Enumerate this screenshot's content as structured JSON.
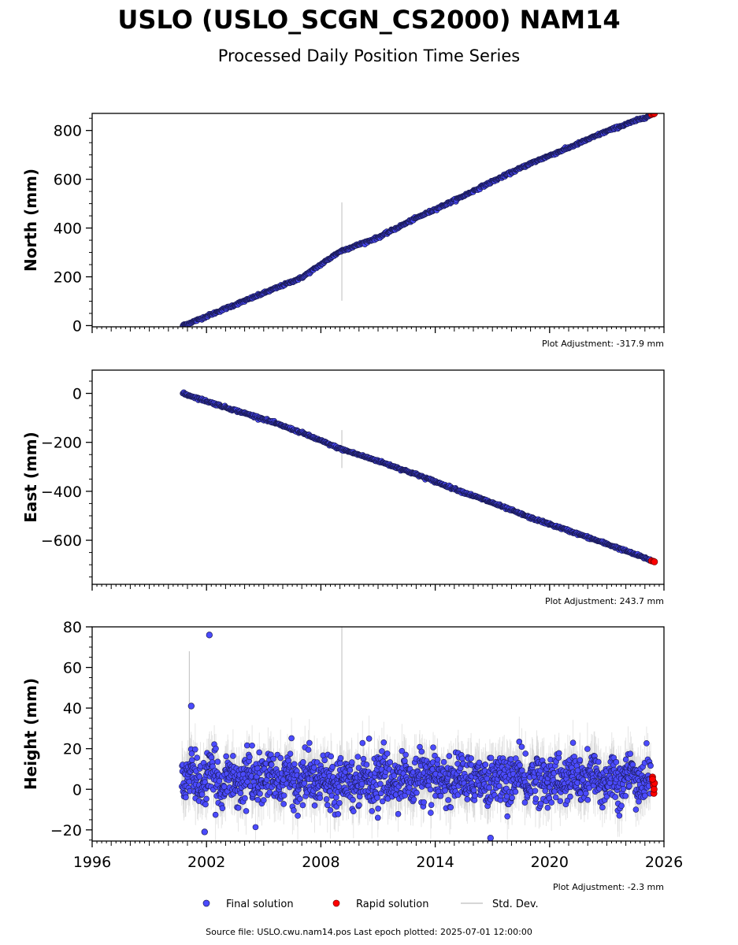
{
  "title": "USLO (USLO_SCGN_CS2000) NAM14",
  "subtitle": "Processed Daily Position Time Series",
  "footer": "Source file: USLO.cwu.nam14.pos  Last epoch plotted: 2025-07-01 12:00:00",
  "legend": {
    "final": "Final solution",
    "rapid": "Rapid solution",
    "std": "Std. Dev."
  },
  "colors": {
    "final_fill": "#4b4bff",
    "final_edge": "#1a1a55",
    "rapid_fill": "#ff0000",
    "rapid_edge": "#7a0000",
    "std_line": "#c8c8c8",
    "axis": "#000000"
  },
  "chart_data": [
    {
      "type": "scatter",
      "ylabel": "North (mm)",
      "adjustment_text": "Plot Adjustment: -317.9 mm",
      "xlim": [
        1996,
        2026
      ],
      "ylim": [
        -5,
        870
      ],
      "yticks": [
        0,
        200,
        400,
        600,
        800
      ],
      "ytick_labels": [
        "0",
        "200",
        "400",
        "600",
        "800"
      ],
      "series": [
        {
          "name": "Final solution",
          "x": [
            2000.75,
            2001.5,
            2003,
            2005,
            2007,
            2009,
            2011,
            2013,
            2015,
            2017,
            2019,
            2021,
            2023,
            2025.3
          ],
          "y": [
            0,
            22,
            70,
            133,
            197,
            304,
            361,
            441,
            513,
            591,
            665,
            729,
            797,
            862
          ]
        },
        {
          "name": "Rapid solution",
          "x": [
            2025.35,
            2025.45,
            2025.5
          ],
          "y": [
            866,
            868,
            870
          ]
        }
      ],
      "std_dev_outliers": [
        {
          "x": 2009.1,
          "y_low": 102,
          "y_high": 505
        }
      ]
    },
    {
      "type": "scatter",
      "ylabel": "East (mm)",
      "adjustment_text": "Plot Adjustment: 243.7 mm",
      "xlim": [
        1996,
        2026
      ],
      "ylim": [
        -780,
        95
      ],
      "yticks": [
        0,
        -200,
        -400,
        -600
      ],
      "ytick_labels": [
        "0",
        "−200",
        "−400",
        "−600"
      ],
      "series": [
        {
          "name": "Final solution",
          "x": [
            2000.75,
            2003,
            2005,
            2007,
            2009,
            2011,
            2013,
            2015,
            2017,
            2019,
            2021,
            2023,
            2025.3
          ],
          "y": [
            0,
            -57,
            -105,
            -161,
            -226,
            -276,
            -331,
            -390,
            -447,
            -508,
            -561,
            -615,
            -681
          ]
        },
        {
          "name": "Rapid solution",
          "x": [
            2025.35,
            2025.45,
            2025.5
          ],
          "y": [
            -684,
            -686,
            -688
          ]
        }
      ],
      "std_dev_outliers": [
        {
          "x": 2009.1,
          "y_low": -305,
          "y_high": -150
        }
      ]
    },
    {
      "type": "scatter",
      "ylabel": "Height (mm)",
      "adjustment_text": "Plot Adjustment: -2.3 mm",
      "xlim": [
        1996,
        2026
      ],
      "ylim": [
        -25.5,
        80
      ],
      "yticks": [
        -20,
        0,
        20,
        40,
        60,
        80
      ],
      "ytick_labels": [
        "−20",
        "0",
        "20",
        "40",
        "60",
        "80"
      ],
      "xticks": [
        1996,
        2002,
        2008,
        2014,
        2020,
        2026
      ],
      "xtick_labels": [
        "1996",
        "2002",
        "2008",
        "2014",
        "2020",
        "2026"
      ],
      "series": [
        {
          "name": "Final solution",
          "x_range": [
            2000.7,
            2025.3
          ],
          "mean": 5,
          "spread": 8,
          "outliers": [
            {
              "x": 2001.2,
              "y": 41
            },
            {
              "x": 2002.15,
              "y": 76
            },
            {
              "x": 2016.9,
              "y": -24
            },
            {
              "x": 2001.9,
              "y": -21
            }
          ]
        },
        {
          "name": "Rapid solution",
          "x": [
            2025.4,
            2025.42,
            2025.45,
            2025.47,
            2025.5,
            2025.4,
            2025.48
          ],
          "y": [
            6,
            4,
            2,
            -2,
            3,
            5,
            0
          ]
        }
      ],
      "std_dev_outliers": [
        {
          "x": 2009.1,
          "y_low": -10,
          "y_high": 80
        },
        {
          "x": 2001.1,
          "y_low": 10,
          "y_high": 68
        }
      ]
    }
  ]
}
